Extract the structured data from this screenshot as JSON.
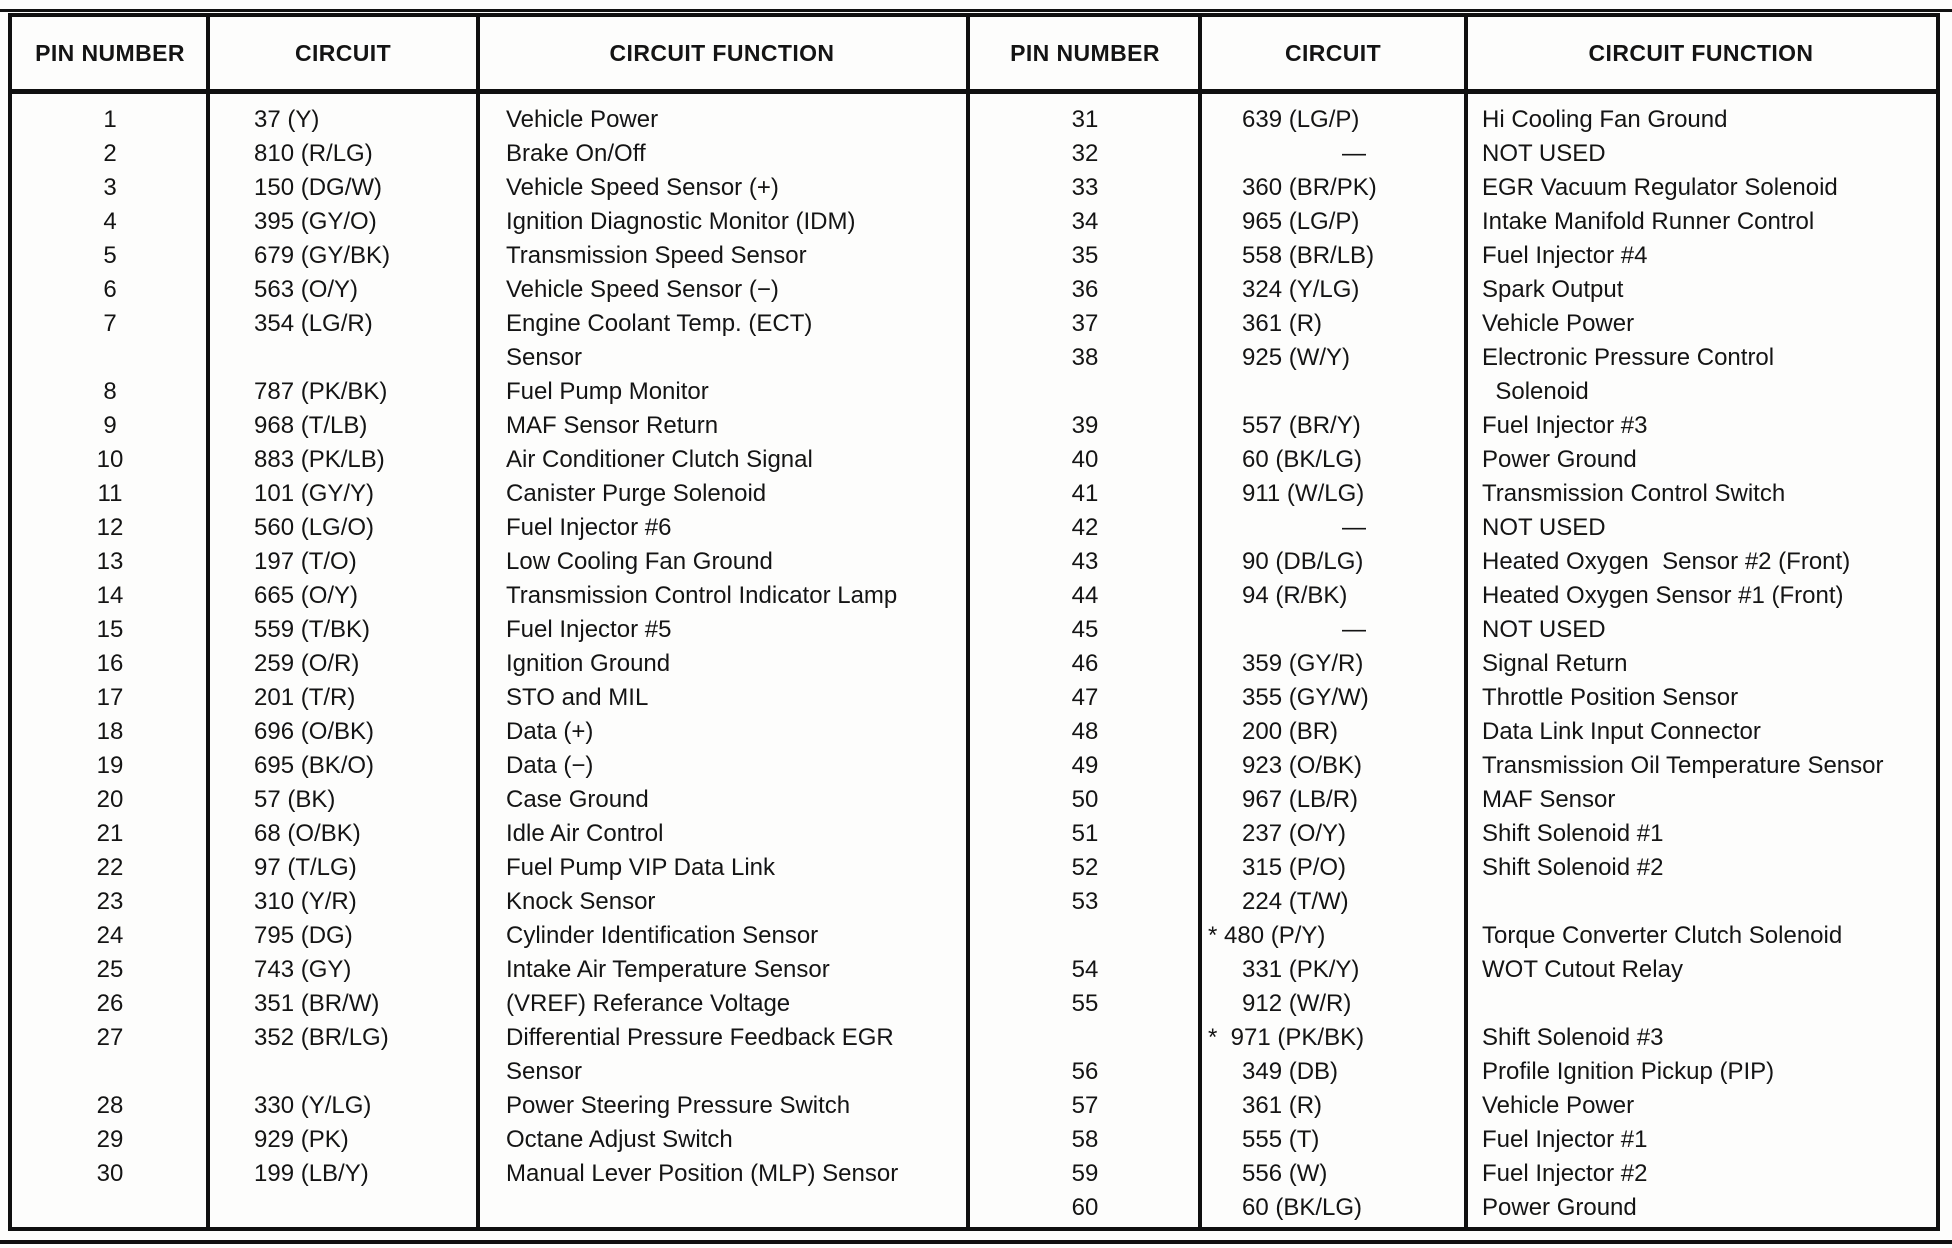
{
  "table": {
    "headers": [
      "PIN NUMBER",
      "CIRCUIT",
      "CIRCUIT FUNCTION"
    ],
    "left": {
      "rows": [
        {
          "pin": "1",
          "circuit": "37 (Y)",
          "fn": "Vehicle Power"
        },
        {
          "pin": "2",
          "circuit": "810 (R/LG)",
          "fn": "Brake On/Off"
        },
        {
          "pin": "3",
          "circuit": "150 (DG/W)",
          "fn": "Vehicle Speed Sensor (+)"
        },
        {
          "pin": "4",
          "circuit": "395 (GY/O)",
          "fn": "Ignition Diagnostic Monitor (IDM)"
        },
        {
          "pin": "5",
          "circuit": "679 (GY/BK)",
          "fn": "Transmission Speed Sensor"
        },
        {
          "pin": "6",
          "circuit": "563 (O/Y)",
          "fn": "Vehicle Speed Sensor (−)"
        },
        {
          "pin": "7",
          "circuit": "354 (LG/R)",
          "fn": "Engine Coolant Temp. (ECT)"
        },
        {
          "pin": "",
          "circuit": "",
          "fn": "Sensor"
        },
        {
          "pin": "8",
          "circuit": "787 (PK/BK)",
          "fn": "Fuel Pump Monitor"
        },
        {
          "pin": "9",
          "circuit": "968 (T/LB)",
          "fn": "MAF Sensor Return"
        },
        {
          "pin": "10",
          "circuit": "883 (PK/LB)",
          "fn": "Air Conditioner Clutch Signal"
        },
        {
          "pin": "11",
          "circuit": "101 (GY/Y)",
          "fn": "Canister Purge Solenoid"
        },
        {
          "pin": "12",
          "circuit": "560 (LG/O)",
          "fn": "Fuel Injector #6"
        },
        {
          "pin": "13",
          "circuit": "197 (T/O)",
          "fn": "Low Cooling Fan Ground"
        },
        {
          "pin": "14",
          "circuit": "665 (O/Y)",
          "fn": "Transmission Control Indicator Lamp"
        },
        {
          "pin": "15",
          "circuit": "559 (T/BK)",
          "fn": "Fuel Injector #5"
        },
        {
          "pin": "16",
          "circuit": "259 (O/R)",
          "fn": "Ignition Ground"
        },
        {
          "pin": "17",
          "circuit": "201 (T/R)",
          "fn": "STO and MIL"
        },
        {
          "pin": "18",
          "circuit": "696 (O/BK)",
          "fn": "Data (+)"
        },
        {
          "pin": "19",
          "circuit": "695 (BK/O)",
          "fn": "Data (−)"
        },
        {
          "pin": "20",
          "circuit": "57 (BK)",
          "fn": "Case Ground"
        },
        {
          "pin": "21",
          "circuit": "68 (O/BK)",
          "fn": "Idle Air Control"
        },
        {
          "pin": "22",
          "circuit": "97 (T/LG)",
          "fn": "Fuel Pump VIP Data Link"
        },
        {
          "pin": "23",
          "circuit": "310 (Y/R)",
          "fn": "Knock Sensor"
        },
        {
          "pin": "24",
          "circuit": "795 (DG)",
          "fn": "Cylinder Identification Sensor"
        },
        {
          "pin": "25",
          "circuit": "743 (GY)",
          "fn": "Intake Air Temperature Sensor"
        },
        {
          "pin": "26",
          "circuit": "351 (BR/W)",
          "fn": "(VREF) Referance Voltage"
        },
        {
          "pin": "27",
          "circuit": "352 (BR/LG)",
          "fn": "Differential Pressure Feedback EGR"
        },
        {
          "pin": "",
          "circuit": "",
          "fn": "Sensor"
        },
        {
          "pin": "28",
          "circuit": "330 (Y/LG)",
          "fn": "Power Steering Pressure Switch"
        },
        {
          "pin": "29",
          "circuit": "929 (PK)",
          "fn": "Octane Adjust Switch"
        },
        {
          "pin": "30",
          "circuit": "199 (LB/Y)",
          "fn": "Manual Lever Position (MLP) Sensor"
        }
      ]
    },
    "right": {
      "rows": [
        {
          "pin": "31",
          "circuit": "639 (LG/P)",
          "fn": "Hi Cooling Fan Ground"
        },
        {
          "pin": "32",
          "circuit": "—",
          "fn": "NOT USED"
        },
        {
          "pin": "33",
          "circuit": "360 (BR/PK)",
          "fn": "EGR Vacuum Regulator Solenoid"
        },
        {
          "pin": "34",
          "circuit": "965 (LG/P)",
          "fn": "Intake Manifold Runner Control"
        },
        {
          "pin": "35",
          "circuit": "558 (BR/LB)",
          "fn": "Fuel Injector #4"
        },
        {
          "pin": "36",
          "circuit": "324 (Y/LG)",
          "fn": "Spark Output"
        },
        {
          "pin": "37",
          "circuit": "361 (R)",
          "fn": "Vehicle Power"
        },
        {
          "pin": "38",
          "circuit": "925 (W/Y)",
          "fn": "Electronic Pressure Control"
        },
        {
          "pin": "",
          "circuit": "",
          "fn": "  Solenoid"
        },
        {
          "pin": "39",
          "circuit": "557 (BR/Y)",
          "fn": "Fuel Injector #3"
        },
        {
          "pin": "40",
          "circuit": "60 (BK/LG)",
          "fn": "Power Ground"
        },
        {
          "pin": "41",
          "circuit": "911 (W/LG)",
          "fn": "Transmission Control Switch"
        },
        {
          "pin": "42",
          "circuit": "—",
          "fn": "NOT USED"
        },
        {
          "pin": "43",
          "circuit": "90 (DB/LG)",
          "fn": "Heated Oxygen  Sensor #2 (Front)"
        },
        {
          "pin": "44",
          "circuit": "94 (R/BK)",
          "fn": "Heated Oxygen Sensor #1 (Front)"
        },
        {
          "pin": "45",
          "circuit": "—",
          "fn": "NOT USED"
        },
        {
          "pin": "46",
          "circuit": "359 (GY/R)",
          "fn": "Signal Return"
        },
        {
          "pin": "47",
          "circuit": "355 (GY/W)",
          "fn": "Throttle Position Sensor"
        },
        {
          "pin": "48",
          "circuit": "200 (BR)",
          "fn": "Data Link Input Connector"
        },
        {
          "pin": "49",
          "circuit": "923 (O/BK)",
          "fn": "Transmission Oil Temperature Sensor"
        },
        {
          "pin": "50",
          "circuit": "967 (LB/R)",
          "fn": "MAF Sensor"
        },
        {
          "pin": "51",
          "circuit": "237 (O/Y)",
          "fn": "Shift Solenoid #1"
        },
        {
          "pin": "52",
          "circuit": "315 (P/O)",
          "fn": "Shift Solenoid #2"
        },
        {
          "pin": "53",
          "circuit": "224 (T/W)",
          "fn": ""
        },
        {
          "pin": "",
          "circuit": "* 480 (P/Y)",
          "fn": "Torque Converter Clutch Solenoid"
        },
        {
          "pin": "54",
          "circuit": "331 (PK/Y)",
          "fn": "WOT Cutout Relay"
        },
        {
          "pin": "55",
          "circuit": "912 (W/R)",
          "fn": ""
        },
        {
          "pin": "",
          "circuit": "*  971 (PK/BK)",
          "fn": "Shift Solenoid #3"
        },
        {
          "pin": "56",
          "circuit": "349 (DB)",
          "fn": "Profile Ignition Pickup (PIP)"
        },
        {
          "pin": "57",
          "circuit": "361 (R)",
          "fn": "Vehicle Power"
        },
        {
          "pin": "58",
          "circuit": "555 (T)",
          "fn": "Fuel Injector #1"
        },
        {
          "pin": "59",
          "circuit": "556 (W)",
          "fn": "Fuel Injector #2"
        },
        {
          "pin": "60",
          "circuit": "60 (BK/LG)",
          "fn": "Power Ground"
        }
      ]
    }
  }
}
